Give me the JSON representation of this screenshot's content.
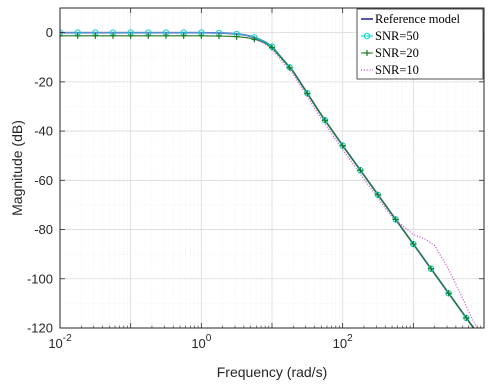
{
  "chart_data": {
    "type": "line",
    "xscale": "log",
    "xlim": [
      0.01,
      10000
    ],
    "ylim": [
      -120,
      10
    ],
    "grid": true,
    "minor_grid": true,
    "xlabel": "Frequency (rad/s)",
    "ylabel": "Magnitude (dB)",
    "xticks": [
      {
        "value": 0.01,
        "base": "10",
        "exp": "-2"
      },
      {
        "value": 1,
        "base": "10",
        "exp": "0"
      },
      {
        "value": 100,
        "base": "10",
        "exp": "2"
      }
    ],
    "yticks": [
      {
        "value": 0,
        "label": "0"
      },
      {
        "value": -20,
        "label": "-20"
      },
      {
        "value": -40,
        "label": "-40"
      },
      {
        "value": -60,
        "label": "-60"
      },
      {
        "value": -80,
        "label": "-80"
      },
      {
        "value": -100,
        "label": "-100"
      },
      {
        "value": -120,
        "label": "-120"
      }
    ],
    "legend_position": "top-right",
    "series": [
      {
        "name": "Reference model",
        "color": "#1f1f9e",
        "style": "solid",
        "marker": "none",
        "x": [
          0.01,
          0.1,
          1,
          2,
          3,
          4,
          5,
          6,
          8,
          10,
          20,
          50,
          100,
          1000,
          10000
        ],
        "y": [
          0,
          0,
          0,
          -0.2,
          -0.5,
          -0.9,
          -1.5,
          -2.2,
          -3.8,
          -5.7,
          -15.8,
          -33.5,
          -45.9,
          -85.9,
          -125.9
        ]
      },
      {
        "name": "SNR=50",
        "color": "#00d2d2",
        "style": "solid",
        "marker": "circle",
        "x": [
          0.01,
          0.1,
          1,
          2,
          3,
          4,
          5,
          6,
          8,
          10,
          20,
          50,
          100,
          1000,
          10000
        ],
        "y": [
          0,
          0,
          0,
          -0.2,
          -0.5,
          -0.9,
          -1.5,
          -2.2,
          -3.8,
          -5.7,
          -15.8,
          -33.5,
          -45.9,
          -85.9,
          -125.9
        ]
      },
      {
        "name": "SNR=20",
        "color": "#1d7a1d",
        "style": "solid",
        "marker": "plus",
        "x": [
          0.01,
          0.1,
          1,
          2,
          3,
          4,
          5,
          6,
          8,
          10,
          20,
          50,
          100,
          1000,
          10000
        ],
        "y": [
          -1.3,
          -1.3,
          -1.3,
          -1.4,
          -1.6,
          -1.9,
          -2.3,
          -2.9,
          -4.3,
          -6.1,
          -15.9,
          -33.5,
          -45.9,
          -85.9,
          -125.9
        ]
      },
      {
        "name": "SNR=10",
        "color": "#d64fd6",
        "style": "dotted",
        "marker": "none",
        "x": [
          0.01,
          0.1,
          1,
          2,
          3,
          4,
          5,
          6,
          8,
          10,
          20,
          50,
          100,
          200,
          500,
          1000,
          1500,
          2000,
          3000,
          5000,
          7000,
          10000
        ],
        "y": [
          0,
          0,
          0,
          -0.2,
          -0.5,
          -1.0,
          -1.7,
          -2.6,
          -4.5,
          -6.8,
          -17.0,
          -35.0,
          -47.5,
          -59.5,
          -75.0,
          -82.0,
          -84.0,
          -86.5,
          -95.0,
          -108.0,
          -117.0,
          -124.0
        ]
      }
    ]
  },
  "colors": {
    "grid_major": "#d9d9d9",
    "grid_minor": "#ededed",
    "axis": "#262626"
  }
}
